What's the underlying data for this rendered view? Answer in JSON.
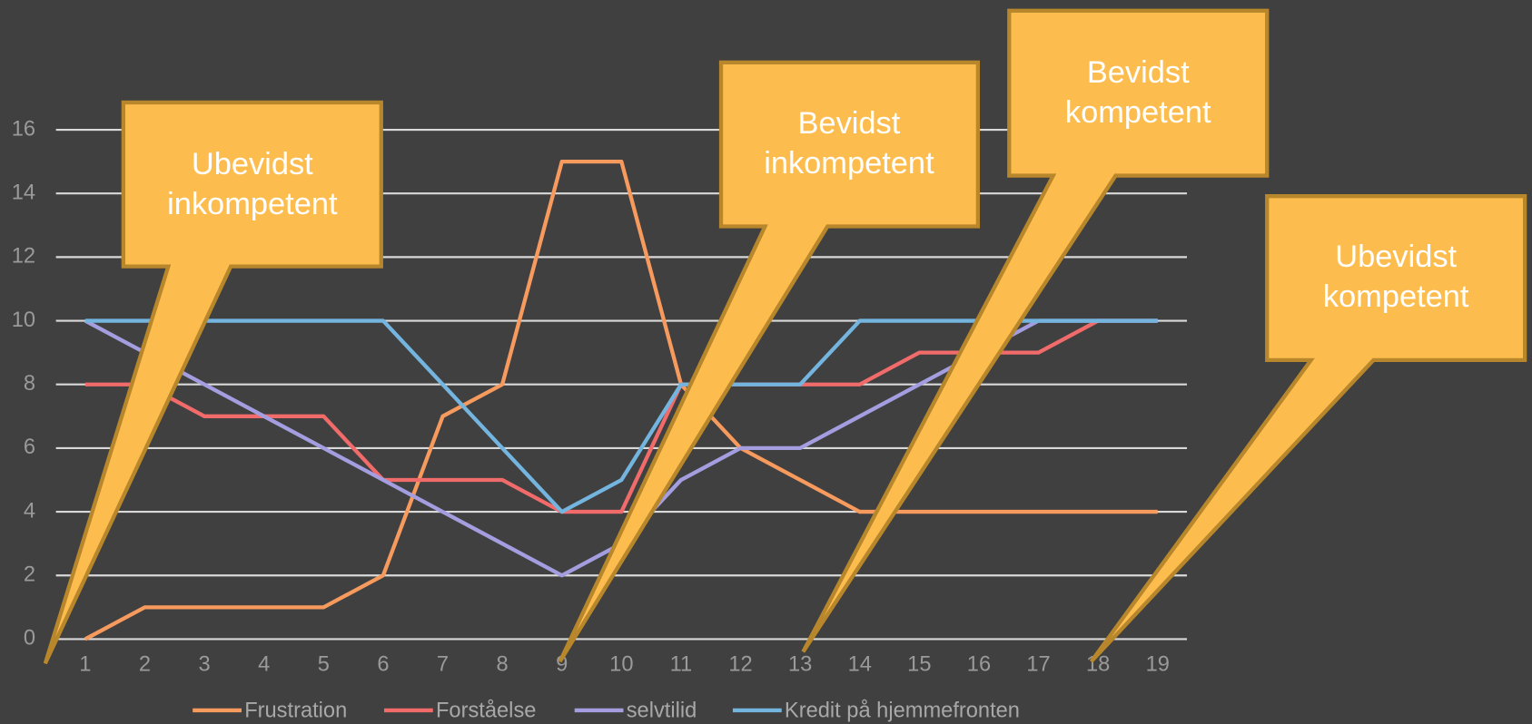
{
  "chart_data": {
    "type": "line",
    "categories": [
      "1",
      "2",
      "3",
      "4",
      "5",
      "6",
      "7",
      "8",
      "9",
      "10",
      "11",
      "12",
      "13",
      "14",
      "15",
      "16",
      "17",
      "18",
      "19"
    ],
    "series": [
      {
        "name": "Frustration",
        "color": "#f79a5e",
        "values": [
          0,
          1,
          1,
          1,
          1,
          2,
          7,
          8,
          15,
          15,
          8,
          6,
          5,
          4,
          4,
          4,
          4,
          4,
          4
        ]
      },
      {
        "name": "Forståelse",
        "color": "#f26b6b",
        "values": [
          8,
          8,
          7,
          7,
          7,
          5,
          5,
          5,
          4,
          4,
          8,
          8,
          8,
          8,
          9,
          9,
          9,
          10,
          10
        ]
      },
      {
        "name": "selvtilid",
        "color": "#a49ee0",
        "values": [
          10,
          9,
          8,
          7,
          6,
          5,
          4,
          3,
          2,
          3,
          5,
          6,
          6,
          7,
          8,
          9,
          10,
          10,
          10
        ]
      },
      {
        "name": "Kredit på hjemmefronten",
        "color": "#74b5e0",
        "values": [
          10,
          10,
          10,
          10,
          10,
          10,
          8,
          6,
          4,
          5,
          8,
          8,
          8,
          10,
          10,
          10,
          10,
          10,
          10
        ]
      }
    ],
    "ylim": [
      0,
      16
    ],
    "yticks": [
      0,
      2,
      4,
      6,
      8,
      10,
      12,
      14,
      16
    ],
    "grid": true,
    "legend": "bottom",
    "annotations": [
      {
        "lines": [
          "Ubevidst",
          "inkompetent"
        ]
      },
      {
        "lines": [
          "Bevidst",
          "inkompetent"
        ]
      },
      {
        "lines": [
          "Bevidst",
          "kompetent"
        ]
      },
      {
        "lines": [
          "Ubevidst",
          "kompetent"
        ]
      }
    ]
  }
}
